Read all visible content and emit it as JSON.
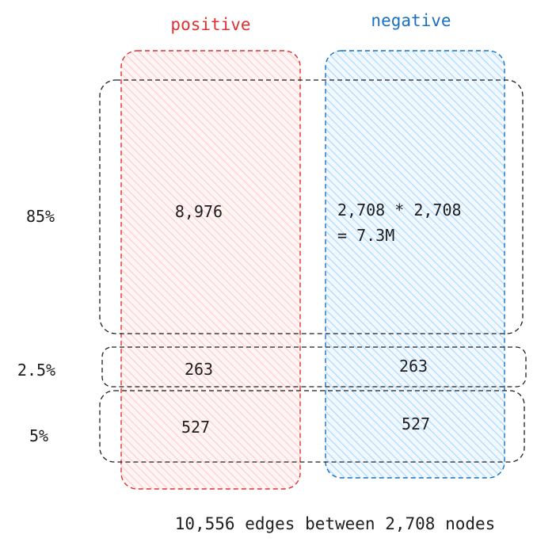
{
  "columns": {
    "positive": "positive",
    "negative": "negative"
  },
  "rows": [
    {
      "label": "85%",
      "positive": "8,976",
      "negative_line1": "2,708 * 2,708",
      "negative_line2": "= 7.3M"
    },
    {
      "label": "2.5%",
      "positive": "263",
      "negative": "263"
    },
    {
      "label": "5%",
      "positive": "527",
      "negative": "527"
    }
  ],
  "footer": "10,556 edges between 2,708 nodes",
  "colors": {
    "positive_stroke": "#e03131",
    "positive_fill": "#ffc9c9",
    "negative_stroke": "#1971c2",
    "negative_fill": "#a5d8ff",
    "dashed_stroke": "#1e1e1e"
  }
}
